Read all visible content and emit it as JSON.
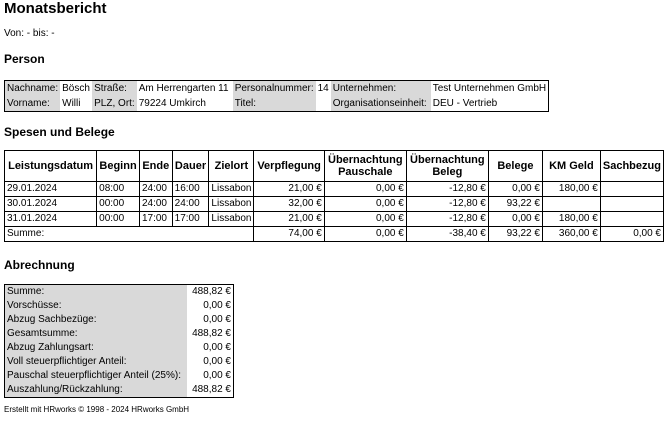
{
  "title": "Monatsbericht",
  "period": "Von: - bis: -",
  "person_heading": "Person",
  "person": {
    "nachname_label": "Nachname:",
    "nachname": "Bösch",
    "strasse_label": "Straße:",
    "strasse": "Am Herrengarten 11",
    "personalnummer_label": "Personalnummer:",
    "personalnummer": "14",
    "unternehmen_label": "Unternehmen:",
    "unternehmen": "Test Unternehmen GmbH",
    "vorname_label": "Vorname:",
    "vorname": "Willi",
    "plz_label": "PLZ, Ort:",
    "plz": "79224 Umkirch",
    "titel_label": "Titel:",
    "titel": "",
    "org_label": "Organisationseinheit:",
    "org": "DEU - Vertrieb"
  },
  "spesen_heading": "Spesen und Belege",
  "spesen": {
    "headers": [
      "Leistungsdatum",
      "Beginn",
      "Ende",
      "Dauer",
      "Zielort",
      "Verpflegung",
      "Übernachtung Pauschale",
      "Übernachtung Beleg",
      "Belege",
      "KM Geld",
      "Sachbezug"
    ],
    "rows": [
      [
        "29.01.2024",
        "08:00",
        "24:00",
        "16:00",
        "Lissabon",
        "21,00 €",
        "0,00 €",
        "-12,80 €",
        "0,00 €",
        "180,00 €",
        ""
      ],
      [
        "30.01.2024",
        "00:00",
        "24:00",
        "24:00",
        "Lissabon",
        "32,00 €",
        "0,00 €",
        "-12,80 €",
        "93,22 €",
        "",
        ""
      ],
      [
        "31.01.2024",
        "00:00",
        "17:00",
        "17:00",
        "Lissabon",
        "21,00 €",
        "0,00 €",
        "-12,80 €",
        "0,00 €",
        "180,00 €",
        ""
      ]
    ],
    "sum_label": "Summe:",
    "sum_values": [
      "74,00 €",
      "0,00 €",
      "-38,40 €",
      "93,22 €",
      "360,00 €",
      "0,00 €"
    ]
  },
  "abrechnung_heading": "Abrechnung",
  "abrechnung": [
    {
      "label": "Summe:",
      "value": "488,82 €"
    },
    {
      "label": "Vorschüsse:",
      "value": "0,00 €"
    },
    {
      "label": "Abzug Sachbezüge:",
      "value": "0,00 €"
    },
    {
      "label": "Gesamtsumme:",
      "value": "488,82 €"
    },
    {
      "label": "Abzug Zahlungsart:",
      "value": "0,00 €"
    },
    {
      "label": "Voll steuerpflichtiger Anteil:",
      "value": "0,00 €"
    },
    {
      "label": "Pauschal steuerpflichtiger Anteil (25%):",
      "value": "0,00 €"
    },
    {
      "label": "Auszahlung/Rückzahlung:",
      "value": "488,82 €"
    }
  ],
  "footer": "Erstellt mit HRworks © 1998 - 2024 HRworks GmbH"
}
